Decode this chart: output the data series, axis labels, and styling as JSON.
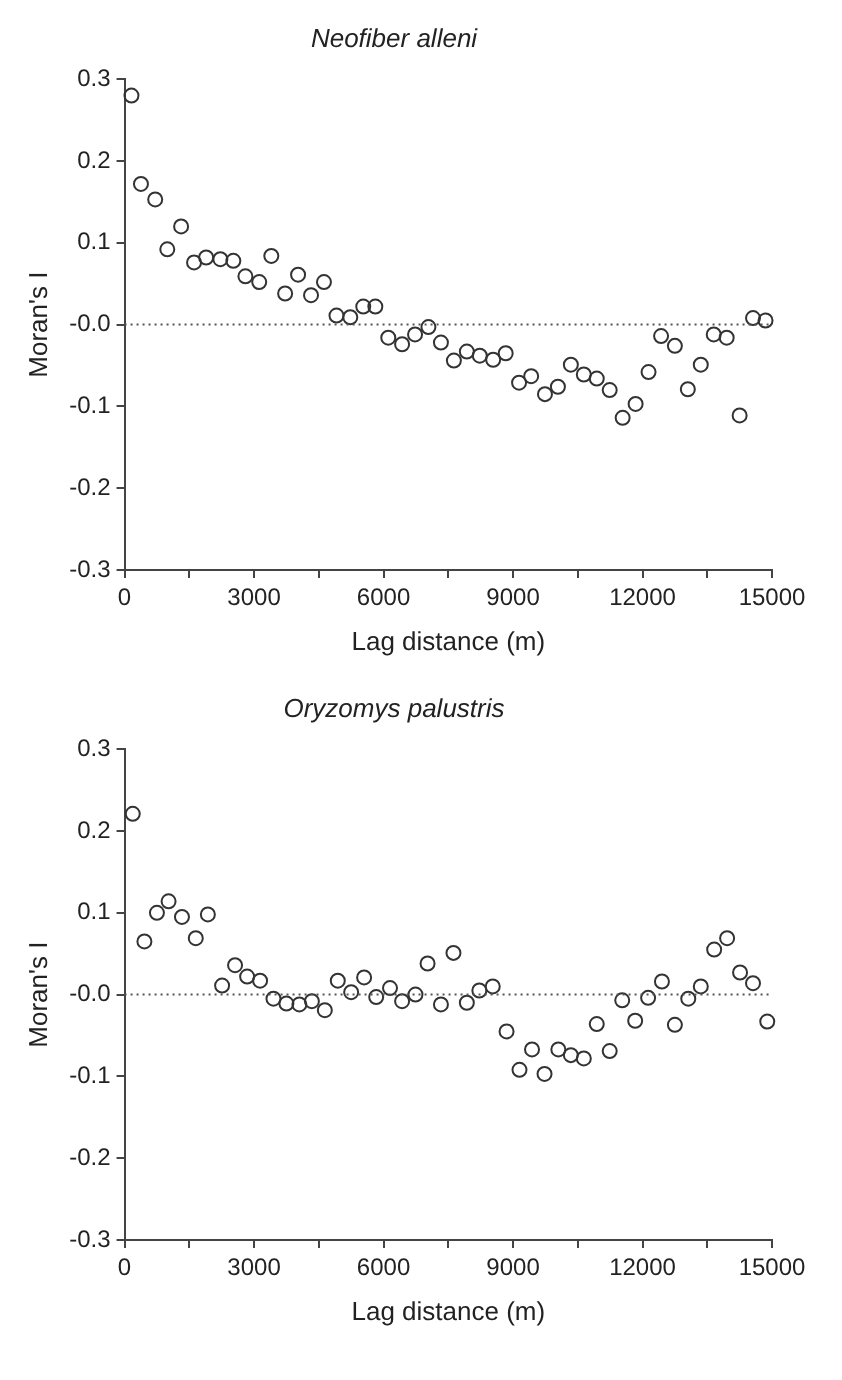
{
  "chart_data": [
    {
      "type": "scatter",
      "title": "Neofiber alleni",
      "xlabel": "Lag distance (m)",
      "ylabel": "Moran's I",
      "x": [
        160,
        380,
        710,
        990,
        1310,
        1610,
        1890,
        2220,
        2520,
        2800,
        3120,
        3400,
        3720,
        4020,
        4320,
        4620,
        4910,
        5230,
        5530,
        5810,
        6110,
        6430,
        6730,
        7040,
        7330,
        7630,
        7930,
        8230,
        8540,
        8830,
        9140,
        9420,
        9740,
        10040,
        10340,
        10640,
        10940,
        11240,
        11540,
        11840,
        12140,
        12430,
        12750,
        13050,
        13350,
        13650,
        13950,
        14250,
        14560,
        14850
      ],
      "series": [
        {
          "color": "#333333",
          "values": [
            0.28,
            0.172,
            0.153,
            0.092,
            0.12,
            0.076,
            0.082,
            0.08,
            0.078,
            0.059,
            0.052,
            0.084,
            0.038,
            0.061,
            0.036,
            0.052,
            0.011,
            0.009,
            0.022,
            0.022,
            -0.016,
            -0.024,
            -0.012,
            -0.003,
            -0.022,
            -0.044,
            -0.033,
            -0.038,
            -0.043,
            -0.035,
            -0.071,
            -0.063,
            -0.085,
            -0.076,
            -0.049,
            -0.061,
            -0.066,
            -0.08,
            -0.114,
            -0.097,
            -0.058,
            -0.014,
            -0.026,
            -0.079,
            -0.049,
            -0.012,
            -0.016,
            -0.111,
            0.008,
            0.005
          ]
        }
      ],
      "xlim": [
        0,
        15000
      ],
      "xticks": [
        0,
        {
          "value": 1500,
          "label": null
        },
        3000,
        {
          "value": 4500,
          "label": null
        },
        6000,
        {
          "value": 7500,
          "label": null
        },
        9000,
        {
          "value": 10500,
          "label": null
        },
        12000,
        {
          "value": 13500,
          "label": null
        },
        15000
      ],
      "ylim": [
        -0.3,
        0.3
      ],
      "yticks": [
        -0.3,
        -0.2,
        -0.1,
        {
          "value": 0,
          "label": "-0.0"
        },
        0.1,
        0.2,
        0.3
      ],
      "ref_lines": [
        {
          "axis": "y",
          "value": 0,
          "line_style": "dotted",
          "color": "#555555"
        }
      ],
      "grid": false,
      "legend": false,
      "marker": "circle"
    },
    {
      "type": "scatter",
      "title": "Oryzomys palustris",
      "xlabel": "Lag distance (m)",
      "ylabel": "Moran's I",
      "x": [
        190,
        460,
        750,
        1020,
        1330,
        1650,
        1930,
        2260,
        2560,
        2840,
        3140,
        3450,
        3750,
        4050,
        4340,
        4640,
        4940,
        5250,
        5550,
        5830,
        6150,
        6430,
        6740,
        7020,
        7330,
        7620,
        7930,
        8220,
        8530,
        8850,
        9150,
        9440,
        9730,
        10050,
        10340,
        10640,
        10940,
        11240,
        11530,
        11830,
        12130,
        12450,
        12750,
        13060,
        13350,
        13660,
        13960,
        14260,
        14560,
        14890
      ],
      "series": [
        {
          "color": "#333333",
          "values": [
            0.221,
            0.065,
            0.1,
            0.114,
            0.095,
            0.069,
            0.098,
            0.011,
            0.036,
            0.022,
            0.017,
            -0.005,
            -0.011,
            -0.012,
            -0.008,
            -0.019,
            0.017,
            0.003,
            0.021,
            -0.003,
            0.008,
            -0.008,
            0.0,
            0.038,
            -0.012,
            0.051,
            -0.01,
            0.005,
            0.01,
            -0.045,
            -0.092,
            -0.067,
            -0.097,
            -0.067,
            -0.074,
            -0.078,
            -0.036,
            -0.069,
            -0.007,
            -0.032,
            -0.004,
            0.016,
            -0.037,
            -0.005,
            0.01,
            0.055,
            0.069,
            0.027,
            0.014,
            -0.033
          ]
        }
      ],
      "xlim": [
        0,
        15000
      ],
      "xticks": [
        0,
        {
          "value": 1500,
          "label": null
        },
        3000,
        {
          "value": 4500,
          "label": null
        },
        6000,
        {
          "value": 7500,
          "label": null
        },
        9000,
        {
          "value": 10500,
          "label": null
        },
        12000,
        {
          "value": 13500,
          "label": null
        },
        15000
      ],
      "ylim": [
        -0.3,
        0.3
      ],
      "yticks": [
        -0.3,
        -0.2,
        -0.1,
        {
          "value": 0,
          "label": "-0.0"
        },
        0.1,
        0.2,
        0.3
      ],
      "ref_lines": [
        {
          "axis": "y",
          "value": 0,
          "line_style": "dotted",
          "color": "#555555"
        }
      ],
      "grid": false,
      "legend": false,
      "marker": "circle"
    }
  ]
}
